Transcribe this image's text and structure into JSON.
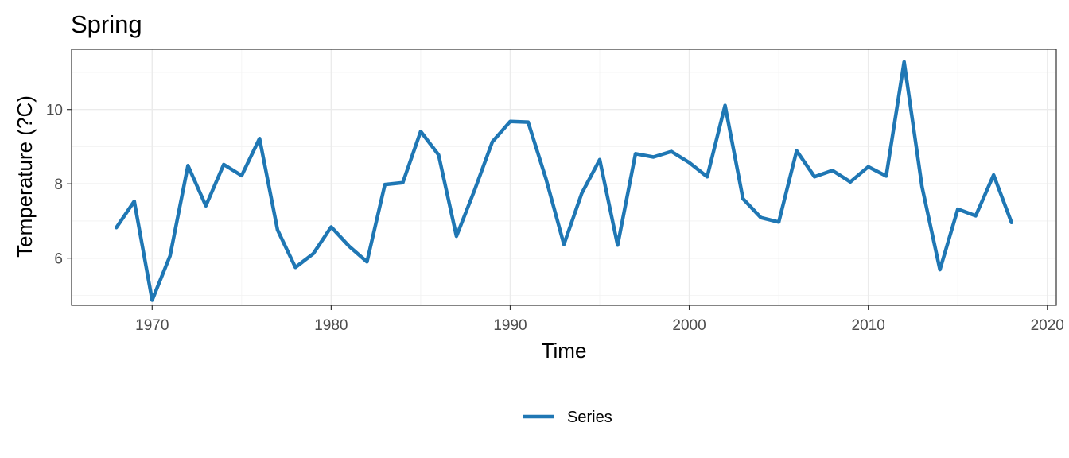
{
  "chart_data": {
    "type": "line",
    "title": "Spring",
    "xlabel": "Time",
    "ylabel": "Temperature (?C)",
    "xlim": [
      1965.5,
      2020.5
    ],
    "ylim": [
      4.73,
      11.62
    ],
    "x_ticks": [
      1970,
      1980,
      1990,
      2000,
      2010,
      2020
    ],
    "y_ticks": [
      6,
      8,
      10
    ],
    "grid": true,
    "legend": "bottom",
    "colors": {
      "series": "#1f77b4"
    },
    "series": [
      {
        "name": "Series",
        "x": [
          1968,
          1969,
          1970,
          1971,
          1972,
          1973,
          1974,
          1975,
          1976,
          1977,
          1978,
          1979,
          1980,
          1981,
          1982,
          1983,
          1984,
          1985,
          1986,
          1987,
          1988,
          1989,
          1990,
          1991,
          1992,
          1993,
          1994,
          1995,
          1996,
          1997,
          1998,
          1999,
          2000,
          2001,
          2002,
          2003,
          2004,
          2005,
          2006,
          2007,
          2008,
          2009,
          2010,
          2011,
          2012,
          2013,
          2014,
          2015,
          2016,
          2017,
          2018
        ],
        "values": [
          6.82,
          7.53,
          4.87,
          6.06,
          8.49,
          7.41,
          8.52,
          8.22,
          9.22,
          6.76,
          5.75,
          6.12,
          6.84,
          6.32,
          5.9,
          7.98,
          8.03,
          9.41,
          8.78,
          6.59,
          7.82,
          9.13,
          9.68,
          9.66,
          8.13,
          6.37,
          7.75,
          8.65,
          6.35,
          8.81,
          8.72,
          8.87,
          8.57,
          8.19,
          10.11,
          7.6,
          7.09,
          6.97,
          8.89,
          8.19,
          8.36,
          8.05,
          8.46,
          8.21,
          11.28,
          7.92,
          5.69,
          7.32,
          7.14,
          8.24,
          6.96
        ]
      }
    ]
  }
}
